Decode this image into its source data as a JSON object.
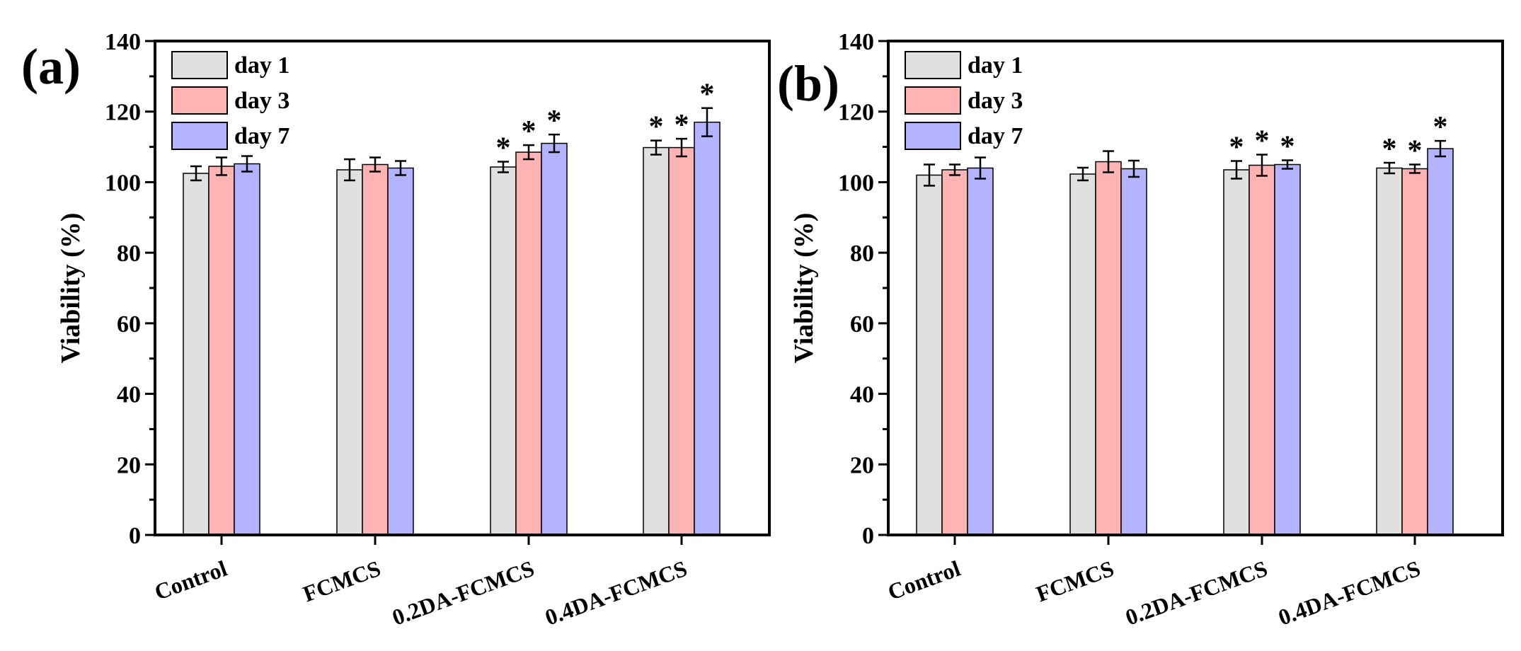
{
  "colors": {
    "day1": "#e0e0e0",
    "day3": "#ffb3b3",
    "day7": "#b3b3ff",
    "axis": "#000000"
  },
  "chart_data": [
    {
      "type": "bar",
      "panel_label": "(a)",
      "ylabel": "Viability (%)",
      "xlabel": "",
      "ylim": [
        0,
        140
      ],
      "yticks": [
        "0",
        "20",
        "40",
        "60",
        "80",
        "100",
        "120",
        "140"
      ],
      "legend_position": "top-left",
      "categories": [
        "Control",
        "FCMCS",
        "0.2DA-FCMCS",
        "0.4DA-FCMCS"
      ],
      "series": [
        {
          "name": "day 1",
          "values": [
            102.5,
            103.5,
            104.3,
            109.8
          ],
          "errors": [
            2.0,
            3.0,
            1.5,
            2.0
          ],
          "significance": [
            "",
            "",
            "*",
            "*"
          ]
        },
        {
          "name": "day 3",
          "values": [
            104.5,
            105.0,
            108.5,
            109.8
          ],
          "errors": [
            2.5,
            2.0,
            2.0,
            2.5
          ],
          "significance": [
            "",
            "",
            "*",
            "*"
          ]
        },
        {
          "name": "day 7",
          "values": [
            105.2,
            104.0,
            111.0,
            117.0
          ],
          "errors": [
            2.2,
            2.0,
            2.5,
            4.0
          ],
          "significance": [
            "",
            "",
            "*",
            "*"
          ]
        }
      ]
    },
    {
      "type": "bar",
      "panel_label": "(b)",
      "ylabel": "Viability (%)",
      "xlabel": "",
      "ylim": [
        0,
        140
      ],
      "yticks": [
        "0",
        "20",
        "40",
        "60",
        "80",
        "100",
        "120",
        "140"
      ],
      "legend_position": "top-left",
      "categories": [
        "Control",
        "FCMCS",
        "0.2DA-FCMCS",
        "0.4DA-FCMCS"
      ],
      "series": [
        {
          "name": "day 1",
          "values": [
            102.0,
            102.3,
            103.5,
            104.0
          ],
          "errors": [
            3.0,
            1.8,
            2.5,
            1.5
          ],
          "significance": [
            "",
            "",
            "*",
            "*"
          ]
        },
        {
          "name": "day 3",
          "values": [
            103.5,
            105.8,
            104.8,
            103.8
          ],
          "errors": [
            1.5,
            3.0,
            3.0,
            1.2
          ],
          "significance": [
            "",
            "",
            "*",
            "*"
          ]
        },
        {
          "name": "day 7",
          "values": [
            104.0,
            103.8,
            105.0,
            109.5
          ],
          "errors": [
            3.0,
            2.3,
            1.2,
            2.2
          ],
          "significance": [
            "",
            "",
            "*",
            "*"
          ]
        }
      ]
    }
  ]
}
